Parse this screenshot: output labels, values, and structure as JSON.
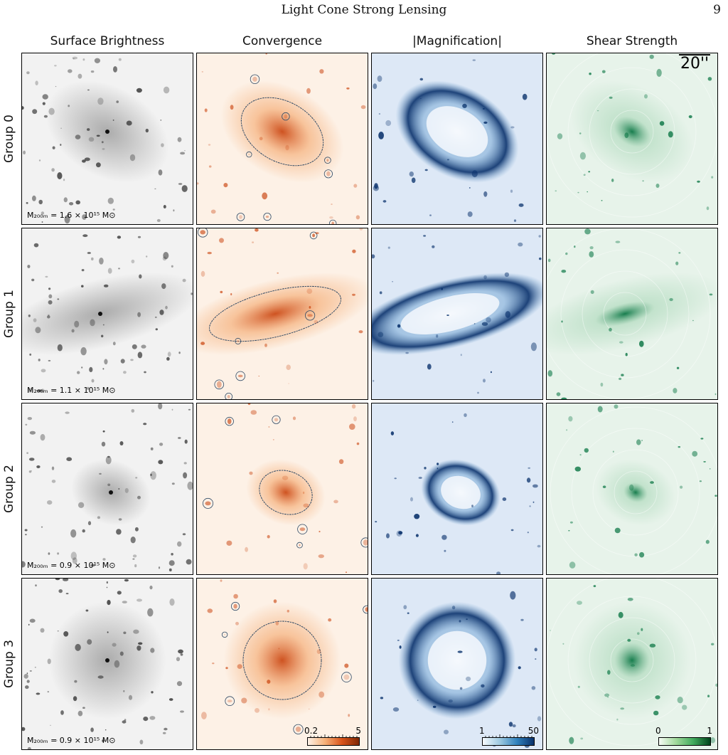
{
  "header": {
    "running_title": "Light Cone Strong Lensing",
    "page_number": "9"
  },
  "columns": [
    "Surface Brightness",
    "Convergence",
    "|Magnification|",
    "Shear Strength"
  ],
  "rows": [
    {
      "label": "Group 0",
      "mass": "M₂₀₀ₘ = 1.6 × 10¹⁵ M⊙"
    },
    {
      "label": "Group 1",
      "mass": "M₂₀₀ₘ = 1.1 × 10¹⁵ M⊙"
    },
    {
      "label": "Group 2",
      "mass": "M₂₀₀ₘ = 0.9 × 10¹⁵ M⊙"
    },
    {
      "label": "Group 3",
      "mass": "M₂₀₀ₘ = 0.9 × 10¹⁵ M⊙"
    }
  ],
  "scalebar": {
    "label": "20''"
  },
  "colorbars": {
    "convergence": {
      "min": "0.2",
      "max": "5",
      "scale": "log"
    },
    "magnification": {
      "min": "1",
      "max": "50",
      "scale": "log"
    },
    "shear": {
      "min": "0",
      "max": "1",
      "scale": "linear"
    }
  },
  "colors": {
    "gray_bg": "#ededed",
    "gray_blob": "#2a2a2a",
    "orange_bg": "#fdf1e6",
    "orange_mid": "#f4a66a",
    "orange_core": "#c9410b",
    "blue_bg": "#dde8f6",
    "blue_mid": "#6fa3d2",
    "blue_dark": "#08306b",
    "green_bg": "#e7f3ea",
    "green_mid": "#8ccaa0",
    "green_dark": "#00703c"
  }
}
